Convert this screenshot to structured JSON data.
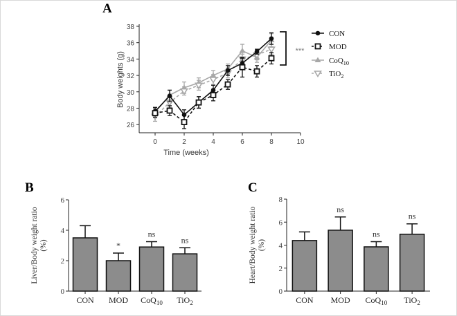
{
  "chart_data": [
    {
      "panel": "A",
      "type": "line",
      "xlabel": "Time (weeks)",
      "ylabel": "Body weights (g)",
      "xlim": [
        0,
        10
      ],
      "ylim": [
        25,
        38
      ],
      "xticks": [
        0,
        2,
        4,
        6,
        8,
        10
      ],
      "yticks": [
        26,
        28,
        30,
        32,
        34,
        36,
        38
      ],
      "x": [
        0,
        1,
        2,
        3,
        4,
        5,
        6,
        7,
        8
      ],
      "series": [
        {
          "name": "CON",
          "sub": "",
          "values": [
            27.6,
            29.5,
            27.2,
            28.7,
            30.2,
            32.6,
            33.5,
            34.9,
            36.5
          ],
          "errors": [
            0.5,
            0.7,
            0.6,
            0.7,
            0.6,
            0.6,
            0.6,
            0.3,
            0.7
          ],
          "color": "#111111",
          "dash": false,
          "marker": "circle"
        },
        {
          "name": "MOD",
          "sub": "",
          "values": [
            27.4,
            27.7,
            26.3,
            28.7,
            29.6,
            30.9,
            33.0,
            32.5,
            34.1
          ],
          "errors": [
            0.5,
            0.6,
            0.8,
            0.7,
            0.7,
            0.6,
            1.2,
            0.7,
            0.7
          ],
          "color": "#111111",
          "dash": true,
          "marker": "square-open"
        },
        {
          "name": "CoQ",
          "sub": "10",
          "values": [
            27.5,
            29.6,
            30.5,
            31.1,
            32.0,
            32.8,
            35.0,
            34.2,
            36.3
          ],
          "errors": [
            0.6,
            0.6,
            0.7,
            0.6,
            0.6,
            0.6,
            0.8,
            0.6,
            0.8
          ],
          "color": "#a8a8a8",
          "dash": false,
          "marker": "triangle"
        },
        {
          "name": "TiO",
          "sub": "2",
          "values": [
            27.0,
            28.7,
            30.1,
            30.8,
            31.5,
            32.3,
            34.0,
            34.5,
            35.2
          ],
          "errors": [
            0.6,
            0.6,
            0.5,
            0.6,
            0.6,
            0.6,
            0.6,
            0.6,
            0.6
          ],
          "color": "#a8a8a8",
          "dash": true,
          "marker": "triangle-down-open"
        }
      ],
      "annotation": "***",
      "legend": "right"
    },
    {
      "panel": "B",
      "type": "bar",
      "ylabel": "Liver/Body weight ratio",
      "ylabel2": "(%)",
      "ylim": [
        0,
        6
      ],
      "yticks": [
        0,
        2,
        4,
        6
      ],
      "categories": [
        {
          "main": "CON",
          "sub": ""
        },
        {
          "main": "MOD",
          "sub": ""
        },
        {
          "main": "CoQ",
          "sub": "10"
        },
        {
          "main": "TiO",
          "sub": "2"
        }
      ],
      "values": [
        3.5,
        2.0,
        2.9,
        2.45
      ],
      "errors": [
        0.8,
        0.5,
        0.35,
        0.4
      ],
      "annotations": [
        "",
        "*",
        "ns",
        "ns"
      ],
      "bar_color": "#8c8c8c"
    },
    {
      "panel": "C",
      "type": "bar",
      "ylabel": "Heart/Body weight ratio",
      "ylabel2": "(%)",
      "ylim": [
        0,
        8
      ],
      "yticks": [
        0,
        2,
        4,
        6,
        8
      ],
      "categories": [
        {
          "main": "CON",
          "sub": ""
        },
        {
          "main": "MOD",
          "sub": ""
        },
        {
          "main": "CoQ",
          "sub": "10"
        },
        {
          "main": "TiO",
          "sub": "2"
        }
      ],
      "values": [
        4.4,
        5.3,
        3.85,
        4.95
      ],
      "errors": [
        0.75,
        1.15,
        0.45,
        0.9
      ],
      "annotations": [
        "",
        "ns",
        "ns",
        "ns"
      ],
      "bar_color": "#8c8c8c"
    }
  ]
}
